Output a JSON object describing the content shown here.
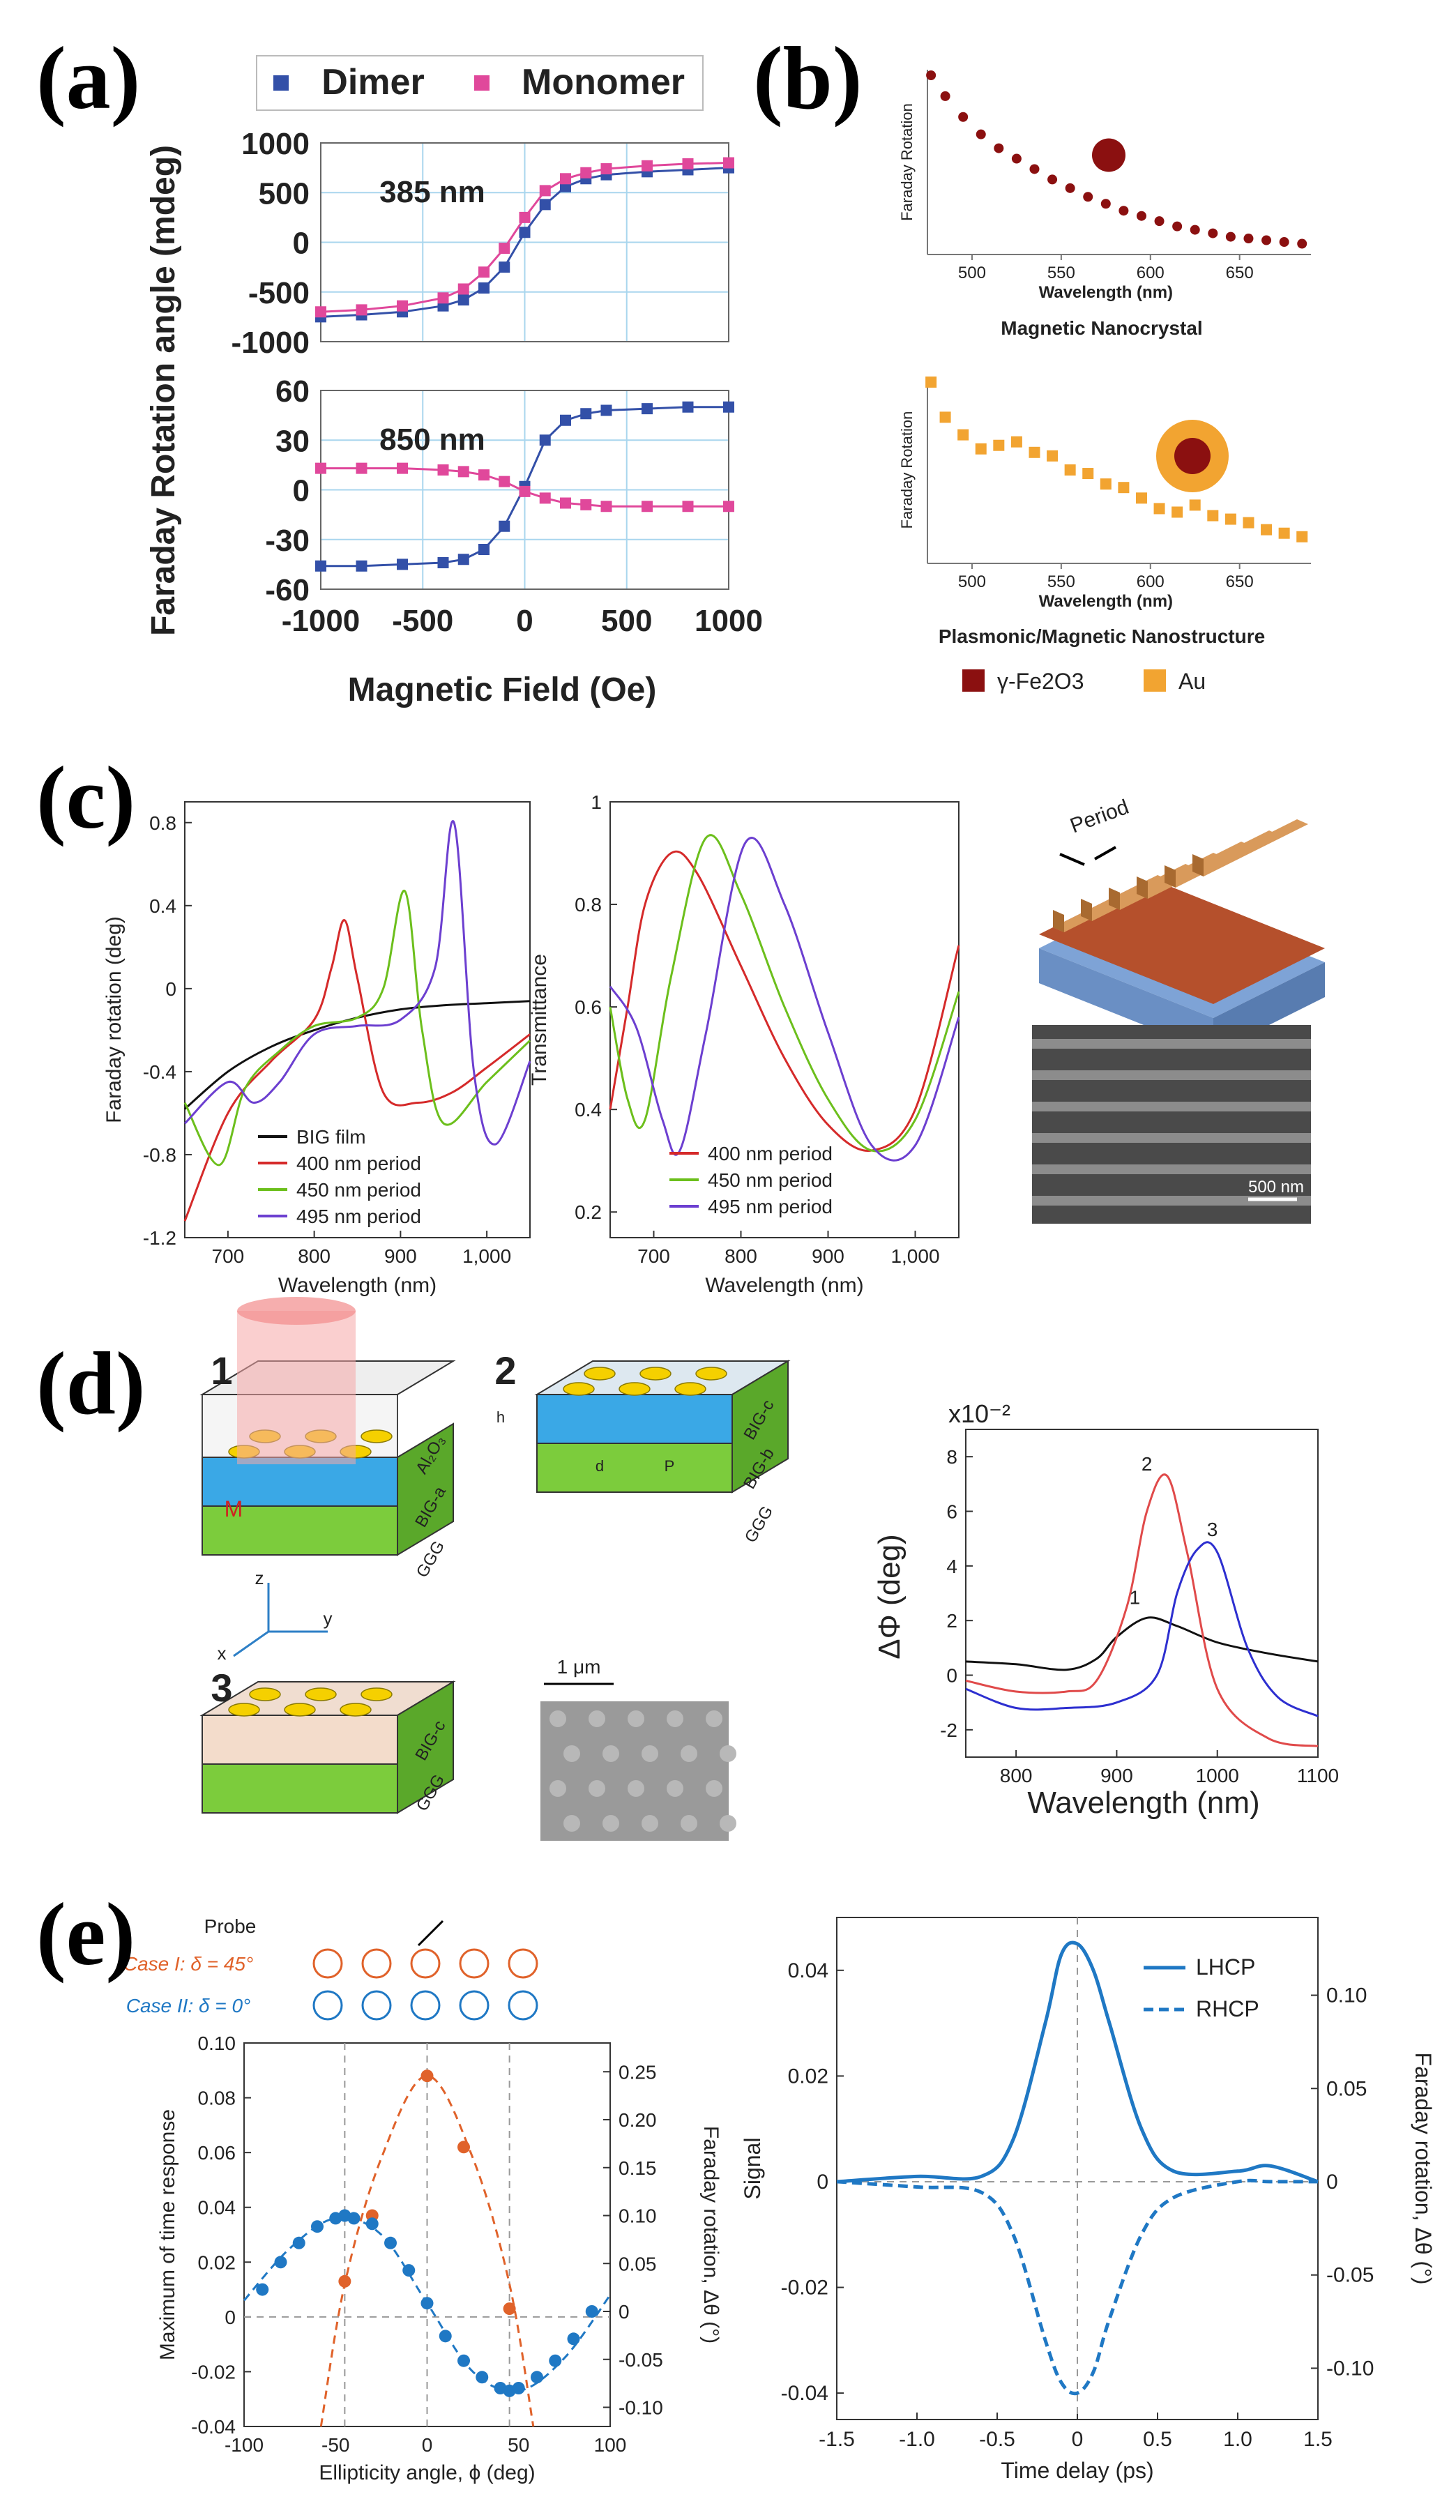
{
  "panel_labels": {
    "a": "(a)",
    "b": "(b)",
    "c": "(c)",
    "d": "(d)",
    "e": "(e)"
  },
  "colors": {
    "dimer": "#3350a8",
    "monomer": "#e0489b",
    "maroon": "#8b1010",
    "gold": "#f2a431",
    "red": "#d52a2a",
    "green": "#6cbf1c",
    "purple": "#6c3fd0",
    "black": "#111111",
    "blue_d": "#2d2fd0",
    "red_d": "#e04a4a",
    "orange_e": "#e0622a",
    "blue_e": "#1f78c4",
    "grid_a": "#a9d6ee"
  },
  "panel_a": {
    "legend": [
      "Dimer",
      "Monomer"
    ],
    "ylabel": "Faraday Rotation angle (mdeg)",
    "xlabel": "Magnetic Field (Oe)",
    "top": {
      "label": "385 nm",
      "yticks": [
        "1000",
        "500",
        "0",
        "-500",
        "-1000"
      ]
    },
    "bottom": {
      "label": "850 nm",
      "yticks": [
        "60",
        "30",
        "0",
        "-30",
        "-60"
      ]
    },
    "xticks": [
      "-1000",
      "-500",
      "0",
      "500",
      "1000"
    ]
  },
  "panel_b": {
    "top_caption": "Magnetic Nanocrystal",
    "bottom_caption": "Plasmonic/Magnetic Nanostructure",
    "ylabel": "Faraday Rotation",
    "xlabel": "Wavelength (nm)",
    "xticks": [
      "500",
      "550",
      "600",
      "650"
    ],
    "legend": [
      "γ-Fe2O3",
      "Au"
    ]
  },
  "panel_c": {
    "left": {
      "ylabel": "Faraday rotation (deg)",
      "xlabel": "Wavelength (nm)",
      "yticks": [
        "0.8",
        "0.4",
        "0",
        "-0.4",
        "-0.8",
        "-1.2"
      ],
      "xticks": [
        "700",
        "800",
        "900",
        "1,000"
      ]
    },
    "mid": {
      "ylabel": "Transmittance",
      "xlabel": "Wavelength (nm)",
      "yticks": [
        "1",
        "0.8",
        "0.6",
        "0.4",
        "0.2"
      ],
      "xticks": [
        "700",
        "800",
        "900",
        "1,000"
      ]
    },
    "legend_left": [
      "BIG film",
      "400 nm period",
      "450 nm period",
      "495 nm period"
    ],
    "legend_mid": [
      "400 nm period",
      "450 nm period",
      "495 nm period"
    ],
    "schematic_label": "Period",
    "sem_scale": "500 nm"
  },
  "panel_d": {
    "nums": [
      "1",
      "2",
      "3"
    ],
    "layer_labels": {
      "al2o3": "Al₂O₃",
      "biga": "BIG-a",
      "bigb": "BIG-b",
      "bigc": "BIG-c",
      "ggg": "GGG",
      "m": "M",
      "h": "h",
      "d": "d",
      "p": "P"
    },
    "axes": {
      "z": "z",
      "y": "y",
      "x": "x"
    },
    "sem_scale": "1 μm",
    "plot": {
      "multiplier": "x10⁻²",
      "ylabel": "ΔΦ (deg)",
      "xlabel": "Wavelength (nm)",
      "yticks": [
        "8",
        "6",
        "4",
        "2",
        "0",
        "-2"
      ],
      "xticks": [
        "800",
        "900",
        "1000",
        "1100"
      ],
      "curve_labels": [
        "1",
        "2",
        "3"
      ]
    }
  },
  "panel_e": {
    "probe_label": "Probe",
    "case1": "Case I: δ = 45°",
    "case2": "Case II: δ = 0°",
    "left": {
      "ylabel": "Maximum of time response",
      "y2label": "Faraday rotation, Δθ (°)",
      "xlabel": "Ellipticity angle, ϕ (deg)",
      "yticks": [
        "0.10",
        "0.08",
        "0.06",
        "0.04",
        "0.02",
        "0",
        "-0.02",
        "-0.04"
      ],
      "y2ticks": [
        "0.25",
        "0.20",
        "0.15",
        "0.10",
        "0.05",
        "0",
        "-0.05",
        "-0.10"
      ],
      "xticks": [
        "-100",
        "-50",
        "0",
        "50",
        "100"
      ]
    },
    "right": {
      "ylabel": "Signal",
      "y2label": "Faraday rotation, Δθ (°)",
      "xlabel": "Time delay (ps)",
      "yticks": [
        "0.04",
        "0.02",
        "0",
        "-0.02",
        "-0.04"
      ],
      "y2ticks": [
        "0.10",
        "0.05",
        "0",
        "-0.05",
        "-0.10"
      ],
      "xticks": [
        "-1.5",
        "-1.0",
        "-0.5",
        "0",
        "0.5",
        "1.0",
        "1.5"
      ],
      "legend": [
        "LHCP",
        "RHCP"
      ]
    }
  },
  "chart_data": [
    {
      "type": "scatter",
      "panel": "a-top",
      "xlim": [
        -1000,
        1000
      ],
      "ylim": [
        -1000,
        1000
      ],
      "grid": true,
      "series": [
        {
          "name": "Dimer",
          "x": [
            -1000,
            -800,
            -600,
            -400,
            -300,
            -200,
            -100,
            0,
            100,
            200,
            300,
            400,
            600,
            800,
            1000
          ],
          "y": [
            -750,
            -730,
            -700,
            -640,
            -580,
            -460,
            -250,
            100,
            380,
            560,
            640,
            680,
            710,
            730,
            750
          ]
        },
        {
          "name": "Monomer",
          "x": [
            -1000,
            -800,
            -600,
            -400,
            -300,
            -200,
            -100,
            0,
            100,
            200,
            300,
            400,
            600,
            800,
            1000
          ],
          "y": [
            -700,
            -680,
            -640,
            -560,
            -470,
            -300,
            -60,
            250,
            520,
            640,
            700,
            740,
            770,
            790,
            800
          ]
        }
      ]
    },
    {
      "type": "scatter",
      "panel": "a-bottom",
      "xlim": [
        -1000,
        1000
      ],
      "ylim": [
        -60,
        60
      ],
      "grid": true,
      "series": [
        {
          "name": "Dimer",
          "x": [
            -1000,
            -800,
            -600,
            -400,
            -300,
            -200,
            -100,
            0,
            100,
            200,
            300,
            400,
            600,
            800,
            1000
          ],
          "y": [
            -46,
            -46,
            -45,
            -44,
            -42,
            -36,
            -22,
            2,
            30,
            42,
            46,
            48,
            49,
            50,
            50
          ]
        },
        {
          "name": "Monomer",
          "x": [
            -1000,
            -800,
            -600,
            -400,
            -300,
            -200,
            -100,
            0,
            100,
            200,
            300,
            400,
            600,
            800,
            1000
          ],
          "y": [
            13,
            13,
            13,
            12,
            11,
            9,
            5,
            -1,
            -5,
            -8,
            -9,
            -10,
            -10,
            -10,
            -10
          ]
        }
      ]
    },
    {
      "type": "scatter",
      "panel": "b-top",
      "xlim": [
        475,
        690
      ],
      "series": [
        {
          "name": "γ-Fe2O3",
          "x": [
            477,
            485,
            495,
            505,
            515,
            525,
            535,
            545,
            555,
            565,
            575,
            585,
            595,
            605,
            615,
            625,
            635,
            645,
            655,
            665,
            675,
            685
          ],
          "y": [
            1.0,
            0.88,
            0.76,
            0.66,
            0.58,
            0.52,
            0.46,
            0.4,
            0.35,
            0.3,
            0.26,
            0.22,
            0.19,
            0.16,
            0.13,
            0.11,
            0.09,
            0.07,
            0.06,
            0.05,
            0.04,
            0.03
          ]
        }
      ]
    },
    {
      "type": "scatter",
      "panel": "b-bottom",
      "xlim": [
        475,
        690
      ],
      "series": [
        {
          "name": "Au",
          "x": [
            477,
            485,
            495,
            505,
            515,
            525,
            535,
            545,
            555,
            565,
            575,
            585,
            595,
            605,
            615,
            625,
            635,
            645,
            655,
            665,
            675,
            685
          ],
          "y": [
            1.0,
            0.8,
            0.7,
            0.62,
            0.64,
            0.66,
            0.6,
            0.58,
            0.5,
            0.48,
            0.42,
            0.4,
            0.34,
            0.28,
            0.26,
            0.3,
            0.24,
            0.22,
            0.2,
            0.16,
            0.14,
            0.12
          ]
        }
      ]
    },
    {
      "type": "line",
      "panel": "c-left",
      "xlim": [
        650,
        1050
      ],
      "ylim": [
        -1.2,
        0.9
      ],
      "series": [
        {
          "name": "BIG film",
          "x": [
            650,
            700,
            750,
            800,
            850,
            900,
            950,
            1000,
            1050
          ],
          "y": [
            -0.58,
            -0.4,
            -0.28,
            -0.2,
            -0.14,
            -0.1,
            -0.08,
            -0.07,
            -0.06
          ]
        },
        {
          "name": "400 nm period",
          "x": [
            650,
            700,
            750,
            800,
            820,
            835,
            850,
            880,
            920,
            960,
            1000,
            1050
          ],
          "y": [
            -1.12,
            -0.6,
            -0.35,
            -0.15,
            0.1,
            0.33,
            0.05,
            -0.5,
            -0.55,
            -0.5,
            -0.38,
            -0.22
          ]
        },
        {
          "name": "450 nm period",
          "x": [
            650,
            690,
            720,
            760,
            800,
            850,
            880,
            905,
            925,
            950,
            1000,
            1050
          ],
          "y": [
            -0.55,
            -0.85,
            -0.48,
            -0.3,
            -0.18,
            -0.14,
            0.0,
            0.47,
            -0.2,
            -0.65,
            -0.45,
            -0.25
          ]
        },
        {
          "name": "495 nm period",
          "x": [
            650,
            700,
            730,
            760,
            800,
            850,
            900,
            940,
            962,
            985,
            1010,
            1050
          ],
          "y": [
            -0.65,
            -0.45,
            -0.55,
            -0.45,
            -0.22,
            -0.18,
            -0.15,
            0.1,
            0.8,
            -0.4,
            -0.75,
            -0.35
          ]
        }
      ]
    },
    {
      "type": "line",
      "panel": "c-mid",
      "xlim": [
        650,
        1050
      ],
      "ylim": [
        0.15,
        1.0
      ],
      "series": [
        {
          "name": "400 nm period",
          "x": [
            650,
            670,
            690,
            720,
            750,
            800,
            850,
            900,
            950,
            1000,
            1050
          ],
          "y": [
            0.4,
            0.6,
            0.8,
            0.9,
            0.86,
            0.68,
            0.5,
            0.37,
            0.32,
            0.4,
            0.72
          ]
        },
        {
          "name": "450 nm period",
          "x": [
            650,
            670,
            690,
            720,
            760,
            800,
            850,
            900,
            950,
            1000,
            1050
          ],
          "y": [
            0.6,
            0.42,
            0.38,
            0.66,
            0.93,
            0.82,
            0.6,
            0.42,
            0.32,
            0.38,
            0.63
          ]
        },
        {
          "name": "495 nm period",
          "x": [
            650,
            680,
            710,
            730,
            760,
            805,
            850,
            900,
            950,
            1000,
            1050
          ],
          "y": [
            0.64,
            0.56,
            0.38,
            0.32,
            0.55,
            0.92,
            0.8,
            0.55,
            0.33,
            0.33,
            0.58
          ]
        }
      ]
    },
    {
      "type": "line",
      "panel": "d",
      "xlim": [
        750,
        1100
      ],
      "ylim": [
        -3,
        9
      ],
      "series": [
        {
          "name": "1",
          "x": [
            750,
            800,
            850,
            880,
            900,
            930,
            960,
            1000,
            1050,
            1100
          ],
          "y": [
            0.5,
            0.4,
            0.2,
            0.6,
            1.4,
            2.1,
            1.8,
            1.2,
            0.8,
            0.5
          ]
        },
        {
          "name": "2",
          "x": [
            750,
            800,
            850,
            880,
            910,
            930,
            950,
            970,
            1000,
            1050,
            1100
          ],
          "y": [
            -0.2,
            -0.6,
            -0.6,
            -0.2,
            2.5,
            6.0,
            7.3,
            4.5,
            -0.5,
            -2.3,
            -2.6
          ]
        },
        {
          "name": "3",
          "x": [
            750,
            800,
            850,
            900,
            940,
            960,
            980,
            1000,
            1030,
            1060,
            1100
          ],
          "y": [
            -0.5,
            -1.2,
            -1.2,
            -1.0,
            0.0,
            3.0,
            4.6,
            4.5,
            1.0,
            -0.8,
            -1.5
          ]
        }
      ]
    },
    {
      "type": "scatter",
      "panel": "e-left",
      "xlim": [
        -100,
        100
      ],
      "ylim": [
        -0.04,
        0.1
      ],
      "series": [
        {
          "name": "Case I: δ = 45°",
          "x": [
            -45,
            -30,
            0,
            20,
            45
          ],
          "y": [
            0.013,
            0.037,
            0.088,
            0.062,
            0.003
          ]
        },
        {
          "name": "Case II: δ = 0°",
          "x": [
            -90,
            -80,
            -70,
            -60,
            -50,
            -45,
            -40,
            -30,
            -20,
            -10,
            0,
            10,
            20,
            30,
            40,
            45,
            50,
            60,
            70,
            80,
            90
          ],
          "y": [
            0.01,
            0.02,
            0.027,
            0.033,
            0.036,
            0.037,
            0.036,
            0.034,
            0.027,
            0.017,
            0.005,
            -0.007,
            -0.016,
            -0.022,
            -0.026,
            -0.027,
            -0.026,
            -0.022,
            -0.016,
            -0.008,
            0.002
          ]
        }
      ]
    },
    {
      "type": "line",
      "panel": "e-right",
      "xlim": [
        -1.5,
        1.5
      ],
      "ylim": [
        -0.045,
        0.05
      ],
      "series": [
        {
          "name": "LHCP",
          "x": [
            -1.5,
            -1.0,
            -0.6,
            -0.4,
            -0.2,
            -0.1,
            0,
            0.1,
            0.2,
            0.4,
            0.6,
            1.0,
            1.2,
            1.5
          ],
          "y": [
            0.0,
            0.001,
            0.001,
            0.008,
            0.03,
            0.043,
            0.045,
            0.04,
            0.03,
            0.01,
            0.002,
            0.002,
            0.003,
            0.0
          ]
        },
        {
          "name": "RHCP",
          "x": [
            -1.5,
            -1.0,
            -0.6,
            -0.4,
            -0.2,
            -0.1,
            0,
            0.1,
            0.2,
            0.4,
            0.6,
            1.0,
            1.2,
            1.5
          ],
          "y": [
            0.0,
            -0.001,
            -0.002,
            -0.01,
            -0.03,
            -0.038,
            -0.04,
            -0.036,
            -0.026,
            -0.01,
            -0.003,
            0.0,
            0.0,
            0.0
          ]
        }
      ]
    }
  ]
}
